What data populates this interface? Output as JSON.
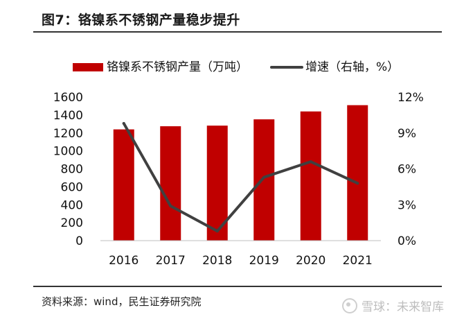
{
  "header": {
    "title": "图7：铬镍系不锈钢产量稳步提升"
  },
  "footer": {
    "source": "资料来源：wind，民生证券研究院",
    "watermark": "雪球：未来智库"
  },
  "colors": {
    "bar": "#c00000",
    "line": "#404040",
    "rule": "#333333"
  },
  "chart_data": {
    "type": "bar",
    "categories": [
      "2016",
      "2017",
      "2018",
      "2019",
      "2020",
      "2021"
    ],
    "series": [
      {
        "name": "铬镍系不锈钢产量（万吨）",
        "type": "bar",
        "axis": "left",
        "values": [
          1240,
          1275,
          1282,
          1352,
          1440,
          1510
        ]
      },
      {
        "name": "增速（右轴，%）",
        "type": "line",
        "axis": "right",
        "values": [
          9.8,
          2.9,
          0.8,
          5.3,
          6.6,
          4.8
        ]
      }
    ],
    "y_left": {
      "ylim": [
        0,
        1600
      ],
      "ticks": [
        "0",
        "200",
        "400",
        "600",
        "800",
        "1000",
        "1200",
        "1400",
        "1600"
      ]
    },
    "y_right": {
      "ylim": [
        0,
        12
      ],
      "ticks": [
        "0%",
        "3%",
        "6%",
        "9%",
        "12%"
      ]
    },
    "grid": false,
    "legend_position": "top"
  }
}
